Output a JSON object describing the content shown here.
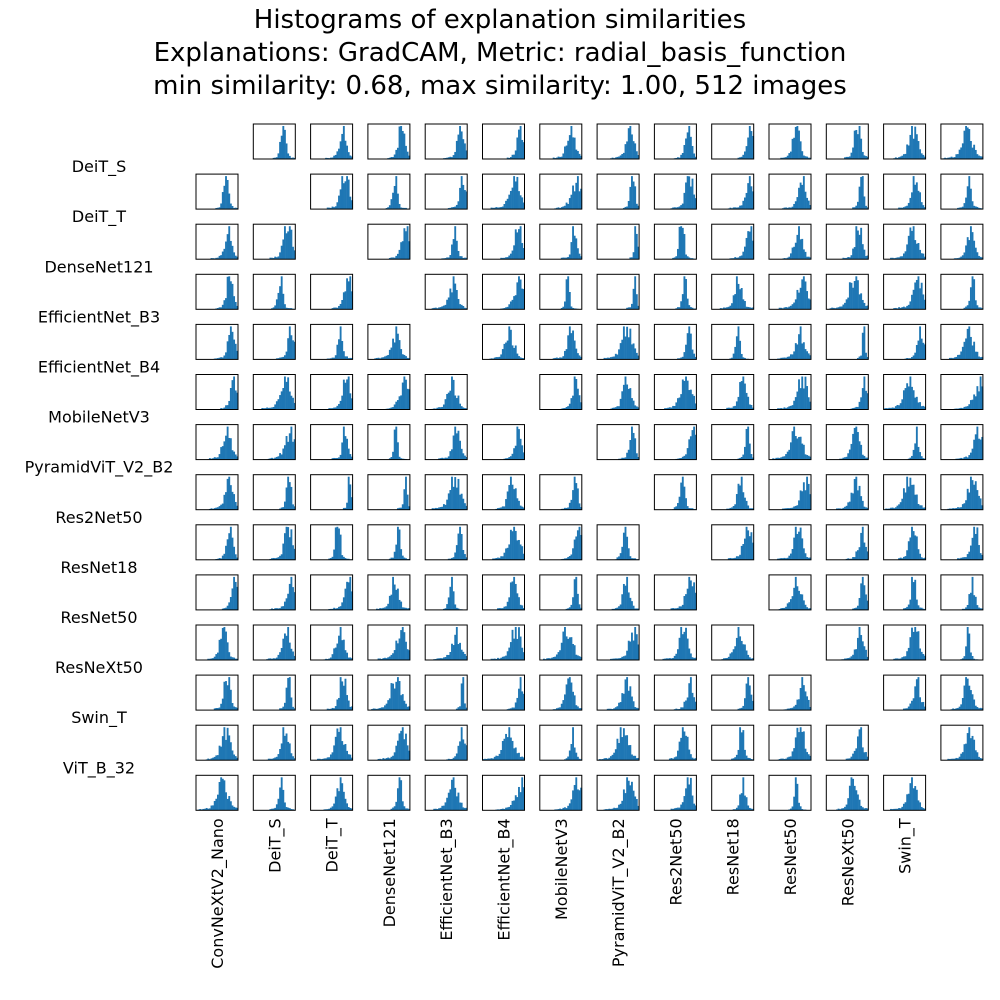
{
  "title": {
    "line1": "Histograms of explanation similarities",
    "line2": "Explanations: GradCAM, Metric: radial_basis_function",
    "line3": "min similarity: 0.68, max similarity: 1.00, 512 images"
  },
  "colors": {
    "bar": "#1f77b4",
    "frame": "#000000",
    "background": "#ffffff"
  },
  "chart_data": {
    "type": "histogram-matrix",
    "row_labels": [
      "DeiT_S",
      "DeiT_T",
      "DenseNet121",
      "EfficientNet_B3",
      "EfficientNet_B4",
      "MobileNetV3",
      "PyramidViT_V2_B2",
      "Res2Net50",
      "ResNet18",
      "ResNet50",
      "ResNeXt50",
      "Swin_T",
      "ViT_B_32"
    ],
    "col_labels": [
      "ConvNeXtV2_Nano",
      "DeiT_S",
      "DeiT_T",
      "DenseNet121",
      "EfficientNet_B3",
      "EfficientNet_B4",
      "MobileNetV3",
      "PyramidViT_V2_B2",
      "Res2Net50",
      "ResNet18",
      "ResNet50",
      "ResNeXt50",
      "Swin_T",
      "ViT_B_32"
    ],
    "models": [
      "ConvNeXtV2_Nano",
      "DeiT_S",
      "DeiT_T",
      "DenseNet121",
      "EfficientNet_B3",
      "EfficientNet_B4",
      "MobileNetV3",
      "PyramidViT_V2_B2",
      "Res2Net50",
      "ResNet18",
      "ResNet50",
      "ResNeXt50",
      "Swin_T",
      "ViT_B_32"
    ],
    "similarity_range": [
      0.68,
      1.0
    ],
    "images": 512,
    "diagonal_empty": true
  }
}
